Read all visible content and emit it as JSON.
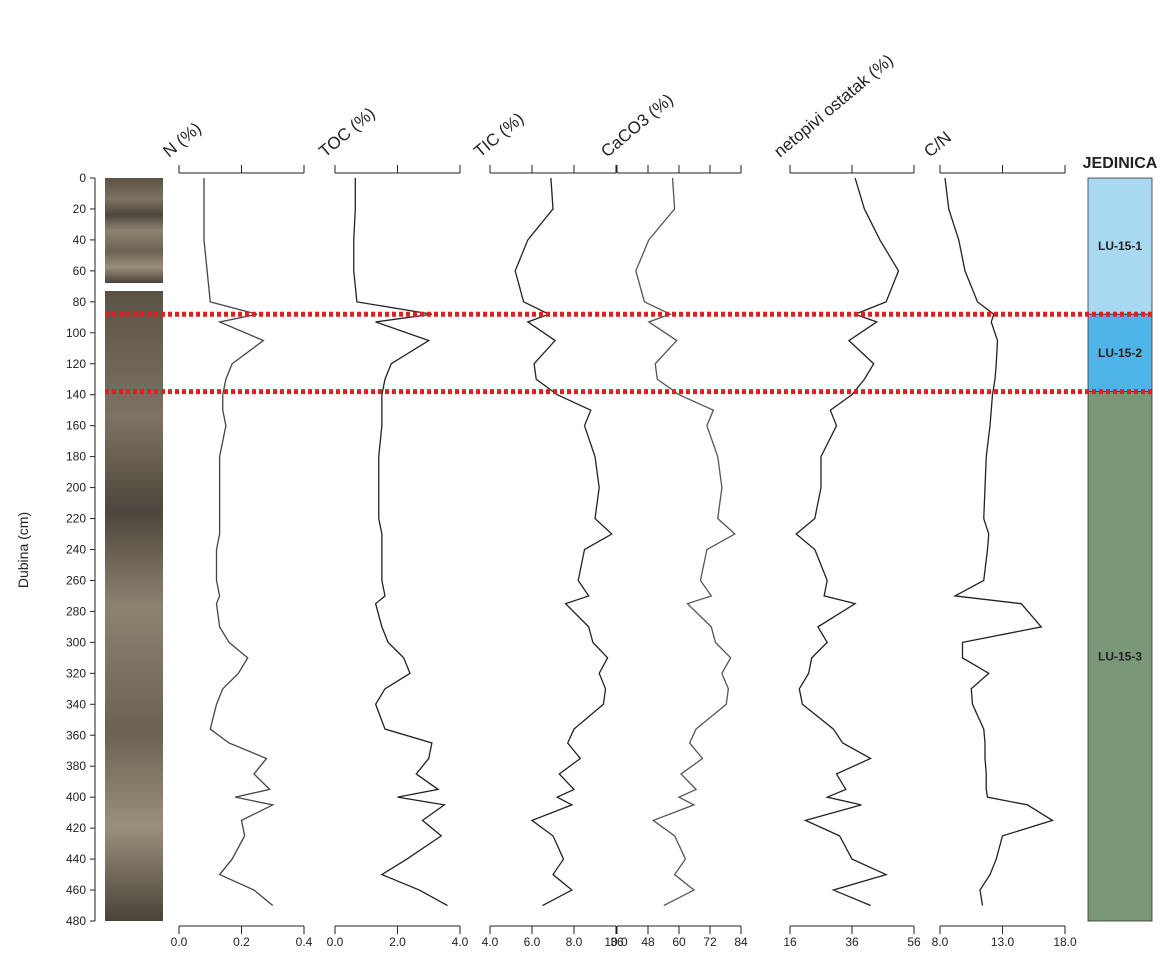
{
  "chart_data": [
    {
      "type": "line",
      "title": "N (%)",
      "ylabel": "Dubina (cm)",
      "ylim": [
        0,
        480
      ],
      "yticks": [
        0,
        20,
        40,
        60,
        80,
        100,
        120,
        140,
        160,
        180,
        200,
        220,
        240,
        260,
        280,
        300,
        320,
        340,
        360,
        380,
        400,
        420,
        440,
        460,
        480
      ],
      "xlim": [
        0,
        0.4
      ],
      "xticks": [
        {
          "value": 0,
          "label": "0.0"
        },
        0.2,
        0.4
      ],
      "color": "#444",
      "y": [
        0,
        20,
        40,
        60,
        80,
        88,
        93,
        105,
        120,
        130,
        140,
        150,
        160,
        180,
        200,
        220,
        230,
        240,
        260,
        270,
        275,
        290,
        300,
        310,
        320,
        330,
        340,
        356,
        365,
        375,
        385,
        395,
        400,
        405,
        415,
        425,
        440,
        450,
        460,
        470
      ],
      "values": [
        0.08,
        0.08,
        0.08,
        0.09,
        0.1,
        0.25,
        0.13,
        0.27,
        0.17,
        0.15,
        0.14,
        0.14,
        0.15,
        0.13,
        0.13,
        0.13,
        0.13,
        0.12,
        0.12,
        0.13,
        0.12,
        0.13,
        0.16,
        0.22,
        0.19,
        0.14,
        0.12,
        0.1,
        0.16,
        0.28,
        0.24,
        0.29,
        0.18,
        0.3,
        0.2,
        0.21,
        0.17,
        0.13,
        0.24,
        0.3
      ]
    },
    {
      "type": "line",
      "title": "TOC (%)",
      "ylim": [
        0,
        480
      ],
      "xlim": [
        0,
        4
      ],
      "xticks": [
        {
          "value": 0,
          "label": "0.0"
        },
        {
          "value": 2,
          "label": "2.0"
        },
        {
          "value": 4,
          "label": "4.0"
        }
      ],
      "color": "#222",
      "y": [
        0,
        20,
        40,
        60,
        80,
        88,
        93,
        105,
        120,
        130,
        140,
        150,
        160,
        180,
        200,
        220,
        230,
        240,
        260,
        270,
        275,
        290,
        300,
        310,
        320,
        330,
        340,
        356,
        365,
        375,
        385,
        395,
        400,
        405,
        415,
        425,
        440,
        450,
        460,
        470
      ],
      "values": [
        0.65,
        0.65,
        0.6,
        0.6,
        0.7,
        3.1,
        1.3,
        3.0,
        1.8,
        1.6,
        1.5,
        1.5,
        1.5,
        1.4,
        1.4,
        1.4,
        1.5,
        1.5,
        1.5,
        1.6,
        1.3,
        1.5,
        1.7,
        2.2,
        2.4,
        1.6,
        1.3,
        1.6,
        3.1,
        3.0,
        2.6,
        3.3,
        2.0,
        3.5,
        2.8,
        3.4,
        2.3,
        1.5,
        2.7,
        3.6
      ]
    },
    {
      "type": "line",
      "title": "TIC (%)",
      "ylim": [
        0,
        480
      ],
      "xlim": [
        4,
        10
      ],
      "xticks": [
        {
          "value": 4,
          "label": "4.0"
        },
        {
          "value": 6,
          "label": "6.0"
        },
        {
          "value": 8,
          "label": "8.0"
        },
        {
          "value": 10,
          "label": "10.0"
        }
      ],
      "color": "#222",
      "y": [
        0,
        20,
        40,
        60,
        80,
        88,
        93,
        105,
        120,
        130,
        140,
        150,
        160,
        180,
        200,
        220,
        230,
        240,
        260,
        270,
        275,
        290,
        300,
        310,
        320,
        330,
        340,
        356,
        365,
        375,
        385,
        395,
        400,
        405,
        415,
        425,
        440,
        450,
        460,
        470
      ],
      "values": [
        6.9,
        7.0,
        5.8,
        5.2,
        5.6,
        6.8,
        5.8,
        7.1,
        6.1,
        6.2,
        7.2,
        8.8,
        8.5,
        9.0,
        9.2,
        9.0,
        9.8,
        8.5,
        8.2,
        8.7,
        7.6,
        8.7,
        8.9,
        9.6,
        9.2,
        9.5,
        9.4,
        8.0,
        7.7,
        8.3,
        7.3,
        8.0,
        7.2,
        7.9,
        6.0,
        7.0,
        7.5,
        7.0,
        7.9,
        6.5
      ]
    },
    {
      "type": "line",
      "title": "CaCO3 (%)",
      "ylim": [
        0,
        480
      ],
      "xlim": [
        36,
        84
      ],
      "xticks": [
        36,
        48,
        60,
        72,
        84
      ],
      "color": "#555",
      "y": [
        0,
        20,
        40,
        60,
        80,
        88,
        93,
        105,
        120,
        130,
        140,
        150,
        160,
        180,
        200,
        220,
        230,
        240,
        260,
        270,
        275,
        290,
        300,
        310,
        320,
        330,
        340,
        356,
        365,
        375,
        385,
        395,
        400,
        405,
        415,
        425,
        440,
        450,
        460,
        470
      ],
      "values": [
        57.5,
        58.3,
        48.3,
        43.3,
        46.6,
        56.6,
        48.3,
        59.1,
        50.8,
        51.6,
        60,
        73.3,
        70.8,
        75,
        76.6,
        75,
        81.6,
        70.8,
        68.3,
        72.5,
        63.3,
        72.5,
        74.1,
        80,
        76.6,
        79.1,
        78.3,
        66.6,
        64.1,
        69.1,
        60.8,
        66.6,
        60,
        65.8,
        50,
        58.3,
        62.5,
        58.3,
        65.8,
        54.1
      ]
    },
    {
      "type": "line",
      "title": "netopivi ostatak (%)",
      "ylim": [
        0,
        480
      ],
      "xlim": [
        16,
        56
      ],
      "xticks": [
        16,
        36,
        56
      ],
      "color": "#222",
      "y": [
        0,
        20,
        40,
        60,
        80,
        88,
        93,
        105,
        120,
        130,
        140,
        150,
        160,
        180,
        200,
        220,
        230,
        240,
        260,
        270,
        275,
        290,
        300,
        310,
        320,
        330,
        340,
        356,
        365,
        375,
        385,
        395,
        400,
        405,
        415,
        425,
        440,
        450,
        460,
        470
      ],
      "values": [
        37,
        40,
        45,
        51,
        47,
        37,
        44,
        35,
        43,
        40,
        36,
        29,
        31,
        26,
        26,
        24,
        18,
        24,
        28,
        27,
        37,
        25,
        28,
        23,
        22,
        19,
        20,
        30,
        33,
        42,
        31,
        34,
        28,
        39,
        21,
        32,
        36,
        47,
        30,
        42
      ]
    },
    {
      "type": "line",
      "title": "C/N",
      "ylim": [
        0,
        480
      ],
      "xlim": [
        8,
        18
      ],
      "xticks": [
        {
          "value": 8,
          "label": "8.0"
        },
        {
          "value": 13,
          "label": "13.0"
        },
        {
          "value": 18,
          "label": "18.0"
        }
      ],
      "color": "#222",
      "y": [
        0,
        20,
        40,
        60,
        80,
        88,
        93,
        105,
        120,
        130,
        140,
        150,
        160,
        180,
        200,
        220,
        230,
        240,
        260,
        270,
        275,
        290,
        300,
        310,
        320,
        330,
        340,
        356,
        365,
        375,
        385,
        395,
        400,
        405,
        415,
        425,
        440,
        450,
        460,
        470
      ],
      "values": [
        8.4,
        8.7,
        9.5,
        10.0,
        11.0,
        12.3,
        12.1,
        12.6,
        12.5,
        12.4,
        12.2,
        12.1,
        12.0,
        11.7,
        11.6,
        11.5,
        11.9,
        11.8,
        11.5,
        9.2,
        14.5,
        16.1,
        9.8,
        9.8,
        11.9,
        10.5,
        10.6,
        11.5,
        11.6,
        11.6,
        11.7,
        11.7,
        11.8,
        15.0,
        17.0,
        13.0,
        12.5,
        12.0,
        11.2,
        11.4
      ]
    }
  ],
  "units": {
    "title": "JEDINICA",
    "zones": [
      {
        "label": "LU-15-1",
        "top": 0,
        "bottom": 88,
        "color": "#a9d8f2"
      },
      {
        "label": "LU-15-2",
        "top": 88,
        "bottom": 138,
        "color": "#4fb4e8"
      },
      {
        "label": "LU-15-3",
        "top": 138,
        "bottom": 480,
        "color": "#7a9878"
      }
    ]
  }
}
